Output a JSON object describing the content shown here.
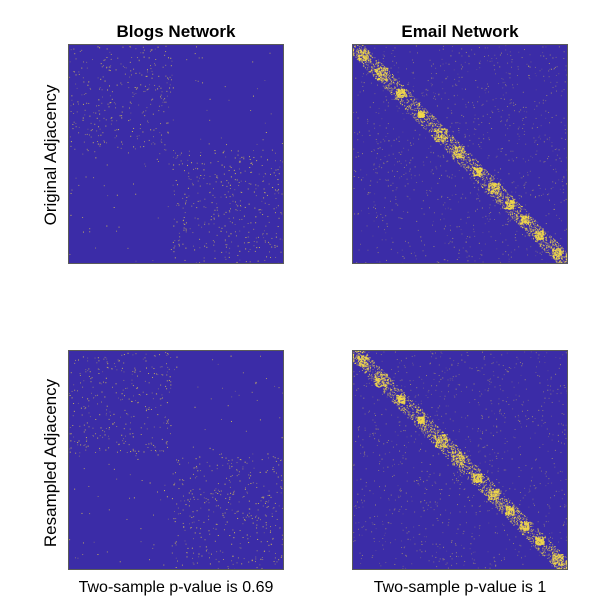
{
  "chart_data": [
    {
      "type": "heatmap",
      "title": "Blogs Network",
      "ylabel": "Original Adjacency",
      "structure": "two-block",
      "colors": {
        "background": "#3b2ca7",
        "points": "#f2d94a"
      }
    },
    {
      "type": "heatmap",
      "title": "Email Network",
      "structure": "diagonal-communities",
      "colors": {
        "background": "#3b2ca7",
        "points": "#f2d94a"
      }
    },
    {
      "type": "heatmap",
      "ylabel": "Resampled Adjacency",
      "caption": "Two-sample p-value is 0.69",
      "structure": "two-block",
      "colors": {
        "background": "#3b2ca7",
        "points": "#f2d94a"
      }
    },
    {
      "type": "heatmap",
      "caption": "Two-sample p-value is 1",
      "structure": "diagonal-communities",
      "colors": {
        "background": "#3b2ca7",
        "points": "#f2d94a"
      }
    }
  ]
}
